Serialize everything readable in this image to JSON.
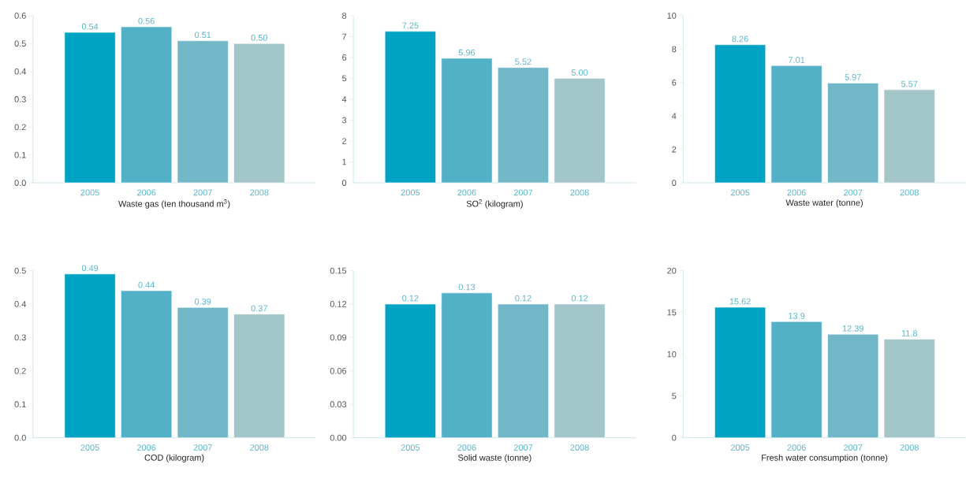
{
  "chart_data": [
    {
      "type": "bar",
      "xlabel": "Waste gas (ten thousand m$^{3}$)",
      "categories": [
        "2005",
        "2006",
        "2007",
        "2008"
      ],
      "values": [
        0.54,
        0.56,
        0.51,
        0.5
      ],
      "value_labels": [
        "0.54",
        "0.56",
        "0.51",
        "0.50"
      ],
      "colors": [
        "#00a3c4",
        "#52b0c7",
        "#72b7c7",
        "#a3c6c8"
      ],
      "ylim": [
        0,
        0.6
      ],
      "yticks": [
        {
          "value": 0,
          "label": "0.0"
        },
        {
          "value": 0.1,
          "label": "0.1"
        },
        {
          "value": 0.2,
          "label": "0.2"
        },
        {
          "value": 0.3,
          "label": "0.3"
        },
        {
          "value": 0.4,
          "label": "0.4"
        },
        {
          "value": 0.5,
          "label": "0.5"
        },
        {
          "value": 0.6,
          "label": "0.6"
        }
      ]
    },
    {
      "type": "bar",
      "xlabel": "SO$^{2}$ (kilogram)",
      "categories": [
        "2005",
        "2006",
        "2007",
        "2008"
      ],
      "values": [
        7.25,
        5.96,
        5.52,
        5.0
      ],
      "value_labels": [
        "7.25",
        "5.96",
        "5.52",
        "5.00"
      ],
      "colors": [
        "#00a3c4",
        "#52b0c7",
        "#72b7c7",
        "#a3c6c8"
      ],
      "ylim": [
        0,
        8
      ],
      "yticks": [
        0,
        1,
        2,
        3,
        4,
        5,
        6,
        7,
        8
      ]
    },
    {
      "type": "bar",
      "xlabel": "Waste water (tonne)",
      "categories": [
        "2005",
        "2006",
        "2007",
        "2008"
      ],
      "values": [
        8.26,
        7.01,
        5.97,
        5.57
      ],
      "value_labels": [
        "8.26",
        "7.01",
        "5.97",
        "5.57"
      ],
      "colors": [
        "#00a3c4",
        "#52b0c7",
        "#72b7c7",
        "#a3c6c8"
      ],
      "ylim": [
        0,
        10
      ],
      "yticks": [
        0,
        2,
        4,
        6,
        8,
        10
      ]
    },
    {
      "type": "bar",
      "xlabel": "COD (kilogram)",
      "categories": [
        "2005",
        "2006",
        "2007",
        "2008"
      ],
      "values": [
        0.49,
        0.44,
        0.39,
        0.37
      ],
      "value_labels": [
        "0.49",
        "0.44",
        "0.39",
        "0.37"
      ],
      "colors": [
        "#00a3c4",
        "#52b0c7",
        "#72b7c7",
        "#a3c6c8"
      ],
      "ylim": [
        0,
        0.5
      ],
      "yticks": [
        {
          "value": 0,
          "label": "0.0"
        },
        {
          "value": 0.1,
          "label": "0.1"
        },
        {
          "value": 0.2,
          "label": "0.2"
        },
        {
          "value": 0.3,
          "label": "0.3"
        },
        {
          "value": 0.4,
          "label": "0.4"
        },
        {
          "value": 0.5,
          "label": "0.5"
        }
      ]
    },
    {
      "type": "bar",
      "xlabel": "Solid waste (tonne)",
      "categories": [
        "2005",
        "2006",
        "2007",
        "2008"
      ],
      "values": [
        0.12,
        0.13,
        0.12,
        0.12
      ],
      "value_labels": [
        "0.12",
        "0.13",
        "0.12",
        "0.12"
      ],
      "colors": [
        "#00a3c4",
        "#52b0c7",
        "#72b7c7",
        "#a3c6c8"
      ],
      "ylim": [
        0,
        0.15
      ],
      "yticks": [
        {
          "value": 0,
          "label": "0.00"
        },
        {
          "value": 0.03,
          "label": "0.03"
        },
        {
          "value": 0.06,
          "label": "0.06"
        },
        {
          "value": 0.09,
          "label": "0.09"
        },
        {
          "value": 0.12,
          "label": "0.12"
        },
        {
          "value": 0.15,
          "label": "0.15"
        }
      ]
    },
    {
      "type": "bar",
      "xlabel": "Fresh water consumption (tonne)",
      "categories": [
        "2005",
        "2006",
        "2007",
        "2008"
      ],
      "values": [
        15.62,
        13.9,
        12.39,
        11.8
      ],
      "value_labels": [
        "15.62",
        "13.9",
        "12.39",
        "11.8"
      ],
      "colors": [
        "#00a3c4",
        "#52b0c7",
        "#72b7c7",
        "#a3c6c8"
      ],
      "ylim": [
        0,
        20
      ],
      "yticks": [
        0,
        5,
        10,
        15,
        20
      ]
    }
  ]
}
